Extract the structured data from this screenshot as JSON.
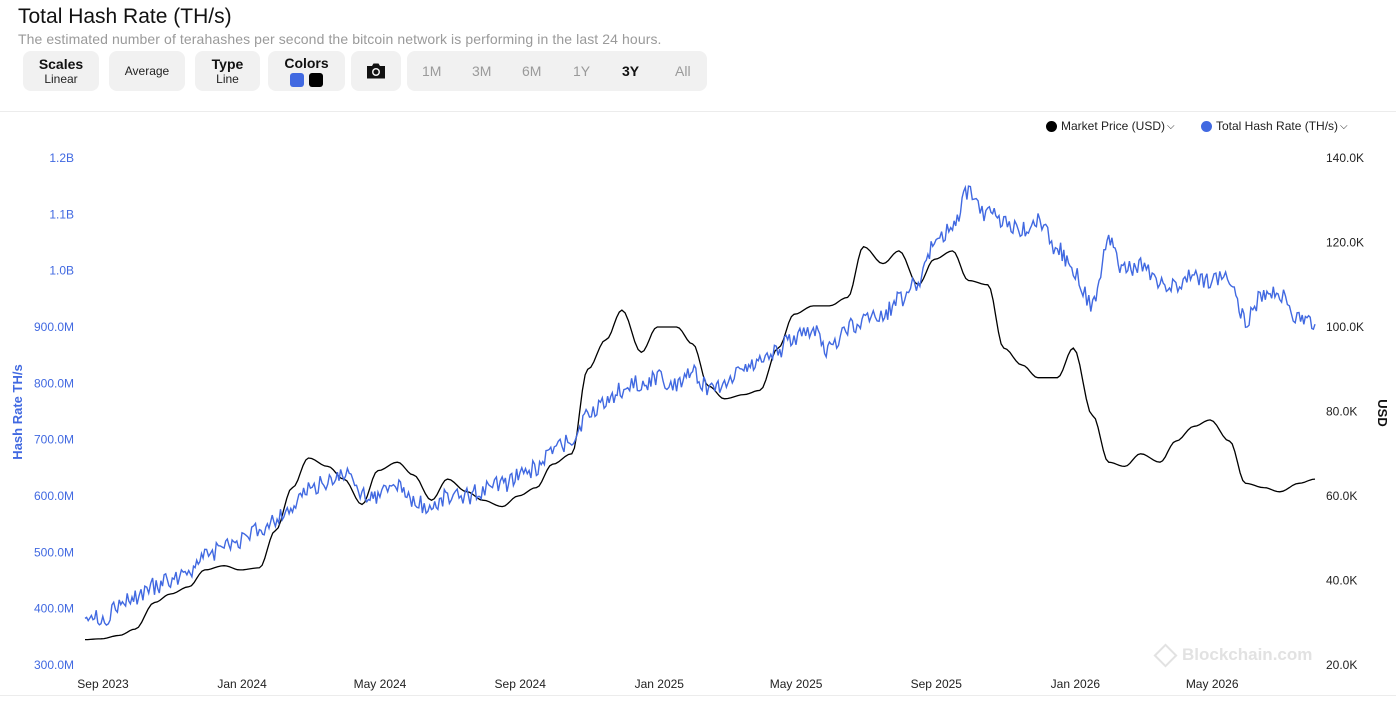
{
  "header": {
    "title": "Total Hash Rate (TH/s)",
    "subtitle": "The estimated number of terahashes per second the bitcoin network is performing in the last 24 hours."
  },
  "toolbar": {
    "scales": {
      "label": "Scales",
      "value": "Linear"
    },
    "average": {
      "label": "Average"
    },
    "type": {
      "label": "Type",
      "value": "Line"
    },
    "colors": {
      "label": "Colors",
      "swatch1": "#4169e1",
      "swatch2": "#000000"
    },
    "camera_icon": "camera-icon",
    "ranges": [
      "1M",
      "3M",
      "6M",
      "1Y",
      "3Y",
      "All"
    ],
    "active_range": "3Y"
  },
  "legend": {
    "price": {
      "label": "Market Price (USD)",
      "color": "#000000"
    },
    "hash": {
      "label": "Total Hash Rate (TH/s)",
      "color": "#4169e1"
    }
  },
  "watermark": "Blockchain.com",
  "chart_data": {
    "type": "line",
    "xlabel": "",
    "y_left_label": "Hash Rate TH/s",
    "y_right_label": "USD",
    "y_left_ticks": [
      "1.2B",
      "1.1B",
      "1.0B",
      "900.0M",
      "800.0M",
      "700.0M",
      "600.0M",
      "500.0M",
      "400.0M",
      "300.0M"
    ],
    "y_right_ticks": [
      "140.0K",
      "120.0K",
      "100.0K",
      "80.0K",
      "60.0K",
      "40.0K",
      "20.0K"
    ],
    "x_ticks": [
      "Sep 2023",
      "Jan 2024",
      "May 2024",
      "Sep 2024",
      "Jan 2025",
      "May 2025",
      "Sep 2025",
      "Jan 2026",
      "May 2026"
    ],
    "y_left_range": [
      300000000,
      1200000000
    ],
    "y_right_range": [
      20000,
      140000
    ],
    "x_range": [
      "2023-09-01",
      "2026-08-15"
    ],
    "grid": false,
    "legend_position": "top-right",
    "series": [
      {
        "name": "Market Price (USD)",
        "axis": "right",
        "color": "#000000",
        "points": [
          [
            "2023-09-01",
            26000
          ],
          [
            "2023-09-15",
            26200
          ],
          [
            "2023-10-01",
            27000
          ],
          [
            "2023-10-15",
            28500
          ],
          [
            "2023-11-01",
            34800
          ],
          [
            "2023-11-15",
            36800
          ],
          [
            "2023-12-01",
            38500
          ],
          [
            "2023-12-15",
            42500
          ],
          [
            "2024-01-01",
            43500
          ],
          [
            "2024-01-15",
            42500
          ],
          [
            "2024-02-01",
            43000
          ],
          [
            "2024-02-15",
            51800
          ],
          [
            "2024-03-01",
            62000
          ],
          [
            "2024-03-15",
            69000
          ],
          [
            "2024-04-01",
            67000
          ],
          [
            "2024-04-15",
            64000
          ],
          [
            "2024-05-01",
            58000
          ],
          [
            "2024-05-15",
            66000
          ],
          [
            "2024-06-01",
            68000
          ],
          [
            "2024-06-15",
            65000
          ],
          [
            "2024-07-01",
            59000
          ],
          [
            "2024-07-15",
            64000
          ],
          [
            "2024-08-01",
            61000
          ],
          [
            "2024-08-15",
            59000
          ],
          [
            "2024-09-01",
            57500
          ],
          [
            "2024-09-15",
            60000
          ],
          [
            "2024-10-01",
            62000
          ],
          [
            "2024-10-15",
            67500
          ],
          [
            "2024-11-01",
            70000
          ],
          [
            "2024-11-15",
            90000
          ],
          [
            "2024-12-01",
            97000
          ],
          [
            "2024-12-15",
            104000
          ],
          [
            "2025-01-01",
            94000
          ],
          [
            "2025-01-15",
            100000
          ],
          [
            "2025-02-01",
            100000
          ],
          [
            "2025-02-15",
            96000
          ],
          [
            "2025-03-01",
            86000
          ],
          [
            "2025-03-15",
            83000
          ],
          [
            "2025-04-01",
            84000
          ],
          [
            "2025-04-15",
            85000
          ],
          [
            "2025-05-01",
            95000
          ],
          [
            "2025-05-15",
            103000
          ],
          [
            "2025-06-01",
            105000
          ],
          [
            "2025-06-15",
            105000
          ],
          [
            "2025-07-01",
            107000
          ],
          [
            "2025-07-15",
            119000
          ],
          [
            "2025-08-01",
            115000
          ],
          [
            "2025-08-15",
            118000
          ],
          [
            "2025-09-01",
            110000
          ],
          [
            "2025-09-15",
            116000
          ],
          [
            "2025-10-01",
            118000
          ],
          [
            "2025-10-15",
            111000
          ],
          [
            "2025-11-01",
            110000
          ],
          [
            "2025-11-15",
            95000
          ],
          [
            "2025-12-01",
            91000
          ],
          [
            "2025-12-15",
            88000
          ],
          [
            "2026-01-01",
            88000
          ],
          [
            "2026-01-15",
            95000
          ],
          [
            "2026-02-01",
            79000
          ],
          [
            "2026-02-15",
            68000
          ],
          [
            "2026-03-01",
            67000
          ],
          [
            "2026-03-15",
            70000
          ],
          [
            "2026-04-01",
            68000
          ],
          [
            "2026-04-15",
            73000
          ],
          [
            "2026-05-01",
            76500
          ],
          [
            "2026-05-15",
            78000
          ],
          [
            "2026-06-01",
            73000
          ],
          [
            "2026-06-15",
            63000
          ],
          [
            "2026-07-01",
            62000
          ],
          [
            "2026-07-15",
            61000
          ],
          [
            "2026-08-01",
            63000
          ],
          [
            "2026-08-15",
            64000
          ]
        ]
      },
      {
        "name": "Total Hash Rate (TH/s)",
        "axis": "left",
        "color": "#4169e1",
        "points": [
          [
            "2023-09-01",
            395000000
          ],
          [
            "2023-09-15",
            380000000
          ],
          [
            "2023-10-01",
            405000000
          ],
          [
            "2023-10-15",
            420000000
          ],
          [
            "2023-11-01",
            440000000
          ],
          [
            "2023-11-15",
            450000000
          ],
          [
            "2023-12-01",
            470000000
          ],
          [
            "2023-12-15",
            490000000
          ],
          [
            "2024-01-01",
            510000000
          ],
          [
            "2024-01-15",
            520000000
          ],
          [
            "2024-02-01",
            540000000
          ],
          [
            "2024-02-15",
            560000000
          ],
          [
            "2024-03-01",
            580000000
          ],
          [
            "2024-03-15",
            610000000
          ],
          [
            "2024-04-01",
            625000000
          ],
          [
            "2024-04-15",
            640000000
          ],
          [
            "2024-05-01",
            605000000
          ],
          [
            "2024-05-15",
            600000000
          ],
          [
            "2024-06-01",
            620000000
          ],
          [
            "2024-06-15",
            590000000
          ],
          [
            "2024-07-01",
            580000000
          ],
          [
            "2024-07-15",
            600000000
          ],
          [
            "2024-08-01",
            600000000
          ],
          [
            "2024-08-15",
            610000000
          ],
          [
            "2024-09-01",
            620000000
          ],
          [
            "2024-09-15",
            635000000
          ],
          [
            "2024-10-01",
            650000000
          ],
          [
            "2024-10-15",
            680000000
          ],
          [
            "2024-11-01",
            700000000
          ],
          [
            "2024-11-15",
            740000000
          ],
          [
            "2024-12-01",
            770000000
          ],
          [
            "2024-12-15",
            790000000
          ],
          [
            "2025-01-01",
            800000000
          ],
          [
            "2025-01-15",
            810000000
          ],
          [
            "2025-02-01",
            800000000
          ],
          [
            "2025-02-15",
            820000000
          ],
          [
            "2025-03-01",
            790000000
          ],
          [
            "2025-03-15",
            800000000
          ],
          [
            "2025-04-01",
            830000000
          ],
          [
            "2025-04-15",
            840000000
          ],
          [
            "2025-05-01",
            860000000
          ],
          [
            "2025-05-15",
            880000000
          ],
          [
            "2025-06-01",
            890000000
          ],
          [
            "2025-06-15",
            860000000
          ],
          [
            "2025-07-01",
            900000000
          ],
          [
            "2025-07-15",
            910000000
          ],
          [
            "2025-08-01",
            920000000
          ],
          [
            "2025-08-15",
            950000000
          ],
          [
            "2025-09-01",
            980000000
          ],
          [
            "2025-09-15",
            1050000000
          ],
          [
            "2025-10-01",
            1080000000
          ],
          [
            "2025-10-15",
            1140000000
          ],
          [
            "2025-11-01",
            1100000000
          ],
          [
            "2025-11-15",
            1090000000
          ],
          [
            "2025-12-01",
            1070000000
          ],
          [
            "2025-12-15",
            1090000000
          ],
          [
            "2026-01-01",
            1040000000
          ],
          [
            "2026-01-15",
            1000000000
          ],
          [
            "2026-02-01",
            940000000
          ],
          [
            "2026-02-15",
            1050000000
          ],
          [
            "2026-03-01",
            1000000000
          ],
          [
            "2026-03-15",
            1010000000
          ],
          [
            "2026-04-01",
            980000000
          ],
          [
            "2026-04-15",
            970000000
          ],
          [
            "2026-05-01",
            990000000
          ],
          [
            "2026-05-15",
            980000000
          ],
          [
            "2026-06-01",
            990000000
          ],
          [
            "2026-06-15",
            910000000
          ],
          [
            "2026-07-01",
            960000000
          ],
          [
            "2026-07-15",
            960000000
          ],
          [
            "2026-08-01",
            910000000
          ],
          [
            "2026-08-15",
            905000000
          ]
        ]
      }
    ]
  }
}
